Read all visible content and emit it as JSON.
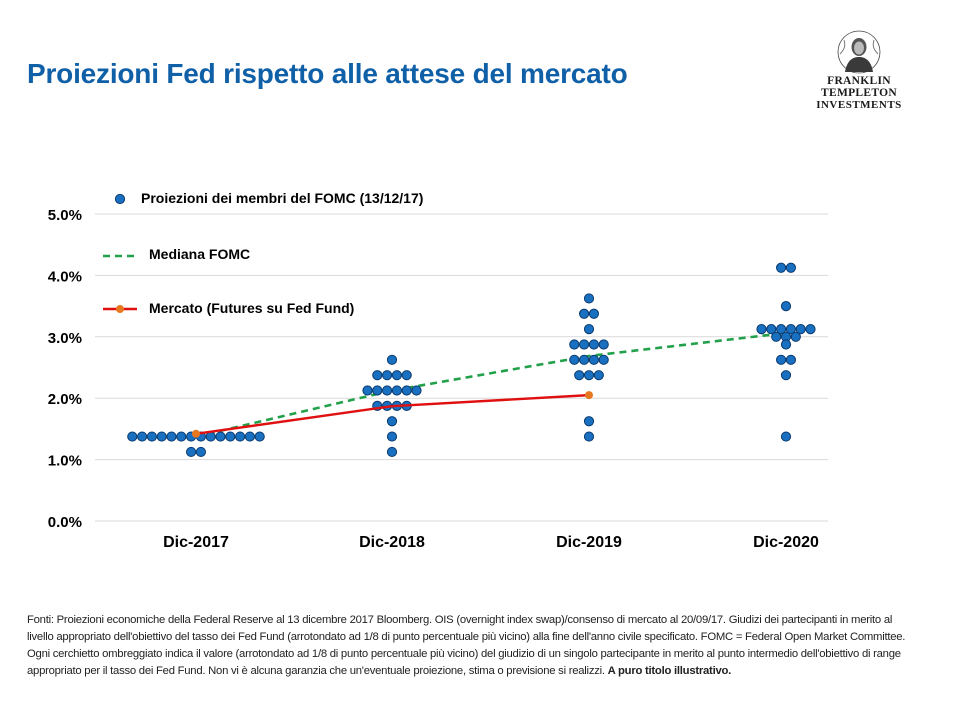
{
  "header": {
    "title": "Proiezioni Fed rispetto alle attese del mercato"
  },
  "logo": {
    "line1": "FRANKLIN TEMPLETON",
    "line2": "INVESTMENTS"
  },
  "colors": {
    "title": "#1060a8",
    "dot_fill": "#1a70c0",
    "dot_stroke": "#0a3a6e",
    "median": "#22a04a",
    "market": "#e01010",
    "market_dot": "#e87820",
    "grid": "#d9d9d9"
  },
  "chart_data": {
    "type": "scatter",
    "y_axis": {
      "min": 0,
      "max": 5,
      "tick_step": 1,
      "tick_labels": [
        "0.0%",
        "1.0%",
        "2.0%",
        "3.0%",
        "4.0%",
        "5.0%"
      ],
      "grid": true
    },
    "categories": [
      "Dic-2017",
      "Dic-2018",
      "Dic-2019",
      "Dic-2020"
    ],
    "legend": {
      "position": "top-left",
      "items": [
        {
          "label": "Proiezioni dei membri del FOMC (13/12/17)",
          "kind": "dot"
        },
        {
          "label": "Mediana FOMC",
          "kind": "dashed"
        },
        {
          "label": "Mercato (Futures su Fed Fund)",
          "kind": "line-dot"
        }
      ]
    },
    "dot_plot": [
      {
        "category": "Dic-2017",
        "levels": [
          {
            "rate": 1.375,
            "count": 14
          },
          {
            "rate": 1.125,
            "count": 2
          }
        ]
      },
      {
        "category": "Dic-2018",
        "levels": [
          {
            "rate": 2.625,
            "count": 1
          },
          {
            "rate": 2.375,
            "count": 4
          },
          {
            "rate": 2.125,
            "count": 6
          },
          {
            "rate": 1.875,
            "count": 4
          },
          {
            "rate": 1.625,
            "count": 1
          },
          {
            "rate": 1.375,
            "count": 1
          },
          {
            "rate": 1.125,
            "count": 1
          }
        ]
      },
      {
        "category": "Dic-2019",
        "levels": [
          {
            "rate": 3.625,
            "count": 1
          },
          {
            "rate": 3.375,
            "count": 2
          },
          {
            "rate": 3.125,
            "count": 1
          },
          {
            "rate": 2.875,
            "count": 4
          },
          {
            "rate": 2.625,
            "count": 4
          },
          {
            "rate": 2.375,
            "count": 3
          },
          {
            "rate": 1.625,
            "count": 1
          },
          {
            "rate": 1.375,
            "count": 1
          }
        ]
      },
      {
        "category": "Dic-2020",
        "levels": [
          {
            "rate": 4.125,
            "count": 2
          },
          {
            "rate": 3.5,
            "count": 1
          },
          {
            "rate": 3.125,
            "count": 6
          },
          {
            "rate": 3.0,
            "count": 3
          },
          {
            "rate": 2.875,
            "count": 1
          },
          {
            "rate": 2.625,
            "count": 2
          },
          {
            "rate": 2.375,
            "count": 1
          },
          {
            "rate": 1.375,
            "count": 1
          }
        ]
      }
    ],
    "series": [
      {
        "name": "Mediana FOMC",
        "style": "dashed",
        "values": [
          1.375,
          2.125,
          2.6875,
          3.0625
        ]
      },
      {
        "name": "Mercato (Futures su Fed Fund)",
        "style": "line-dot",
        "values": [
          1.42,
          1.87,
          2.05,
          null
        ]
      }
    ]
  },
  "footnote": {
    "text": "Fonti: Proiezioni economiche della Federal Reserve al 13 dicembre 2017 Bloomberg. OIS (overnight index swap)/consenso di mercato al 20/09/17. Giudizi dei partecipanti in merito al livello appropriato dell'obiettivo del tasso dei Fed Fund (arrotondato ad 1/8 di punto percentuale più vicino) alla fine dell'anno civile specificato. FOMC = Federal Open Market Committee. Ogni cerchietto ombreggiato indica il valore (arrotondato ad 1/8 di punto percentuale più vicino) del giudizio di un singolo partecipante in merito al punto intermedio dell'obiettivo di range appropriato per il tasso dei Fed Fund. Non vi è alcuna garanzia che un'eventuale proiezione, stima o previsione si realizzi.",
    "bold": "A puro titolo illustrativo."
  }
}
